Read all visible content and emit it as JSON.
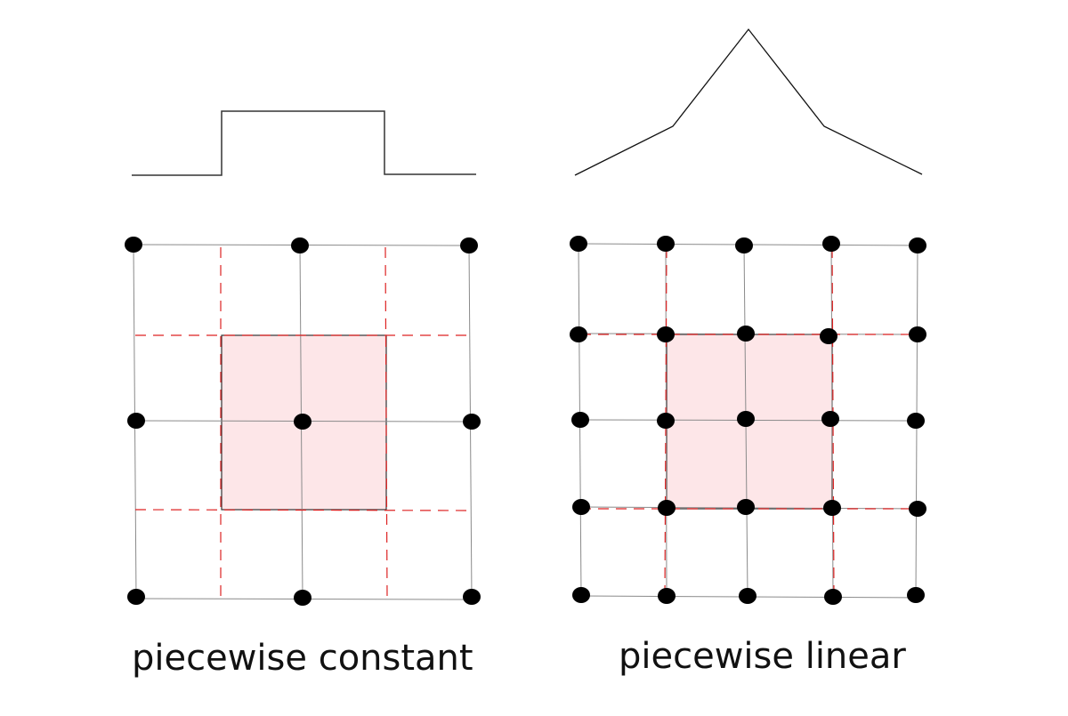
{
  "panels": [
    {
      "id": "constant",
      "caption": "piecewise constant",
      "basis_profile": "box",
      "grid_nodes": "3x3",
      "support": "one cell around center node"
    },
    {
      "id": "linear",
      "caption": "piecewise linear",
      "basis_profile": "hat",
      "grid_nodes": "5x5",
      "support": "two cells around center node"
    }
  ],
  "colors": {
    "grid_line": "#8a8a8a",
    "dual_line": "#dd2222",
    "support_fill": "#fde6e8",
    "node": "#000000",
    "profile": "#333333"
  }
}
